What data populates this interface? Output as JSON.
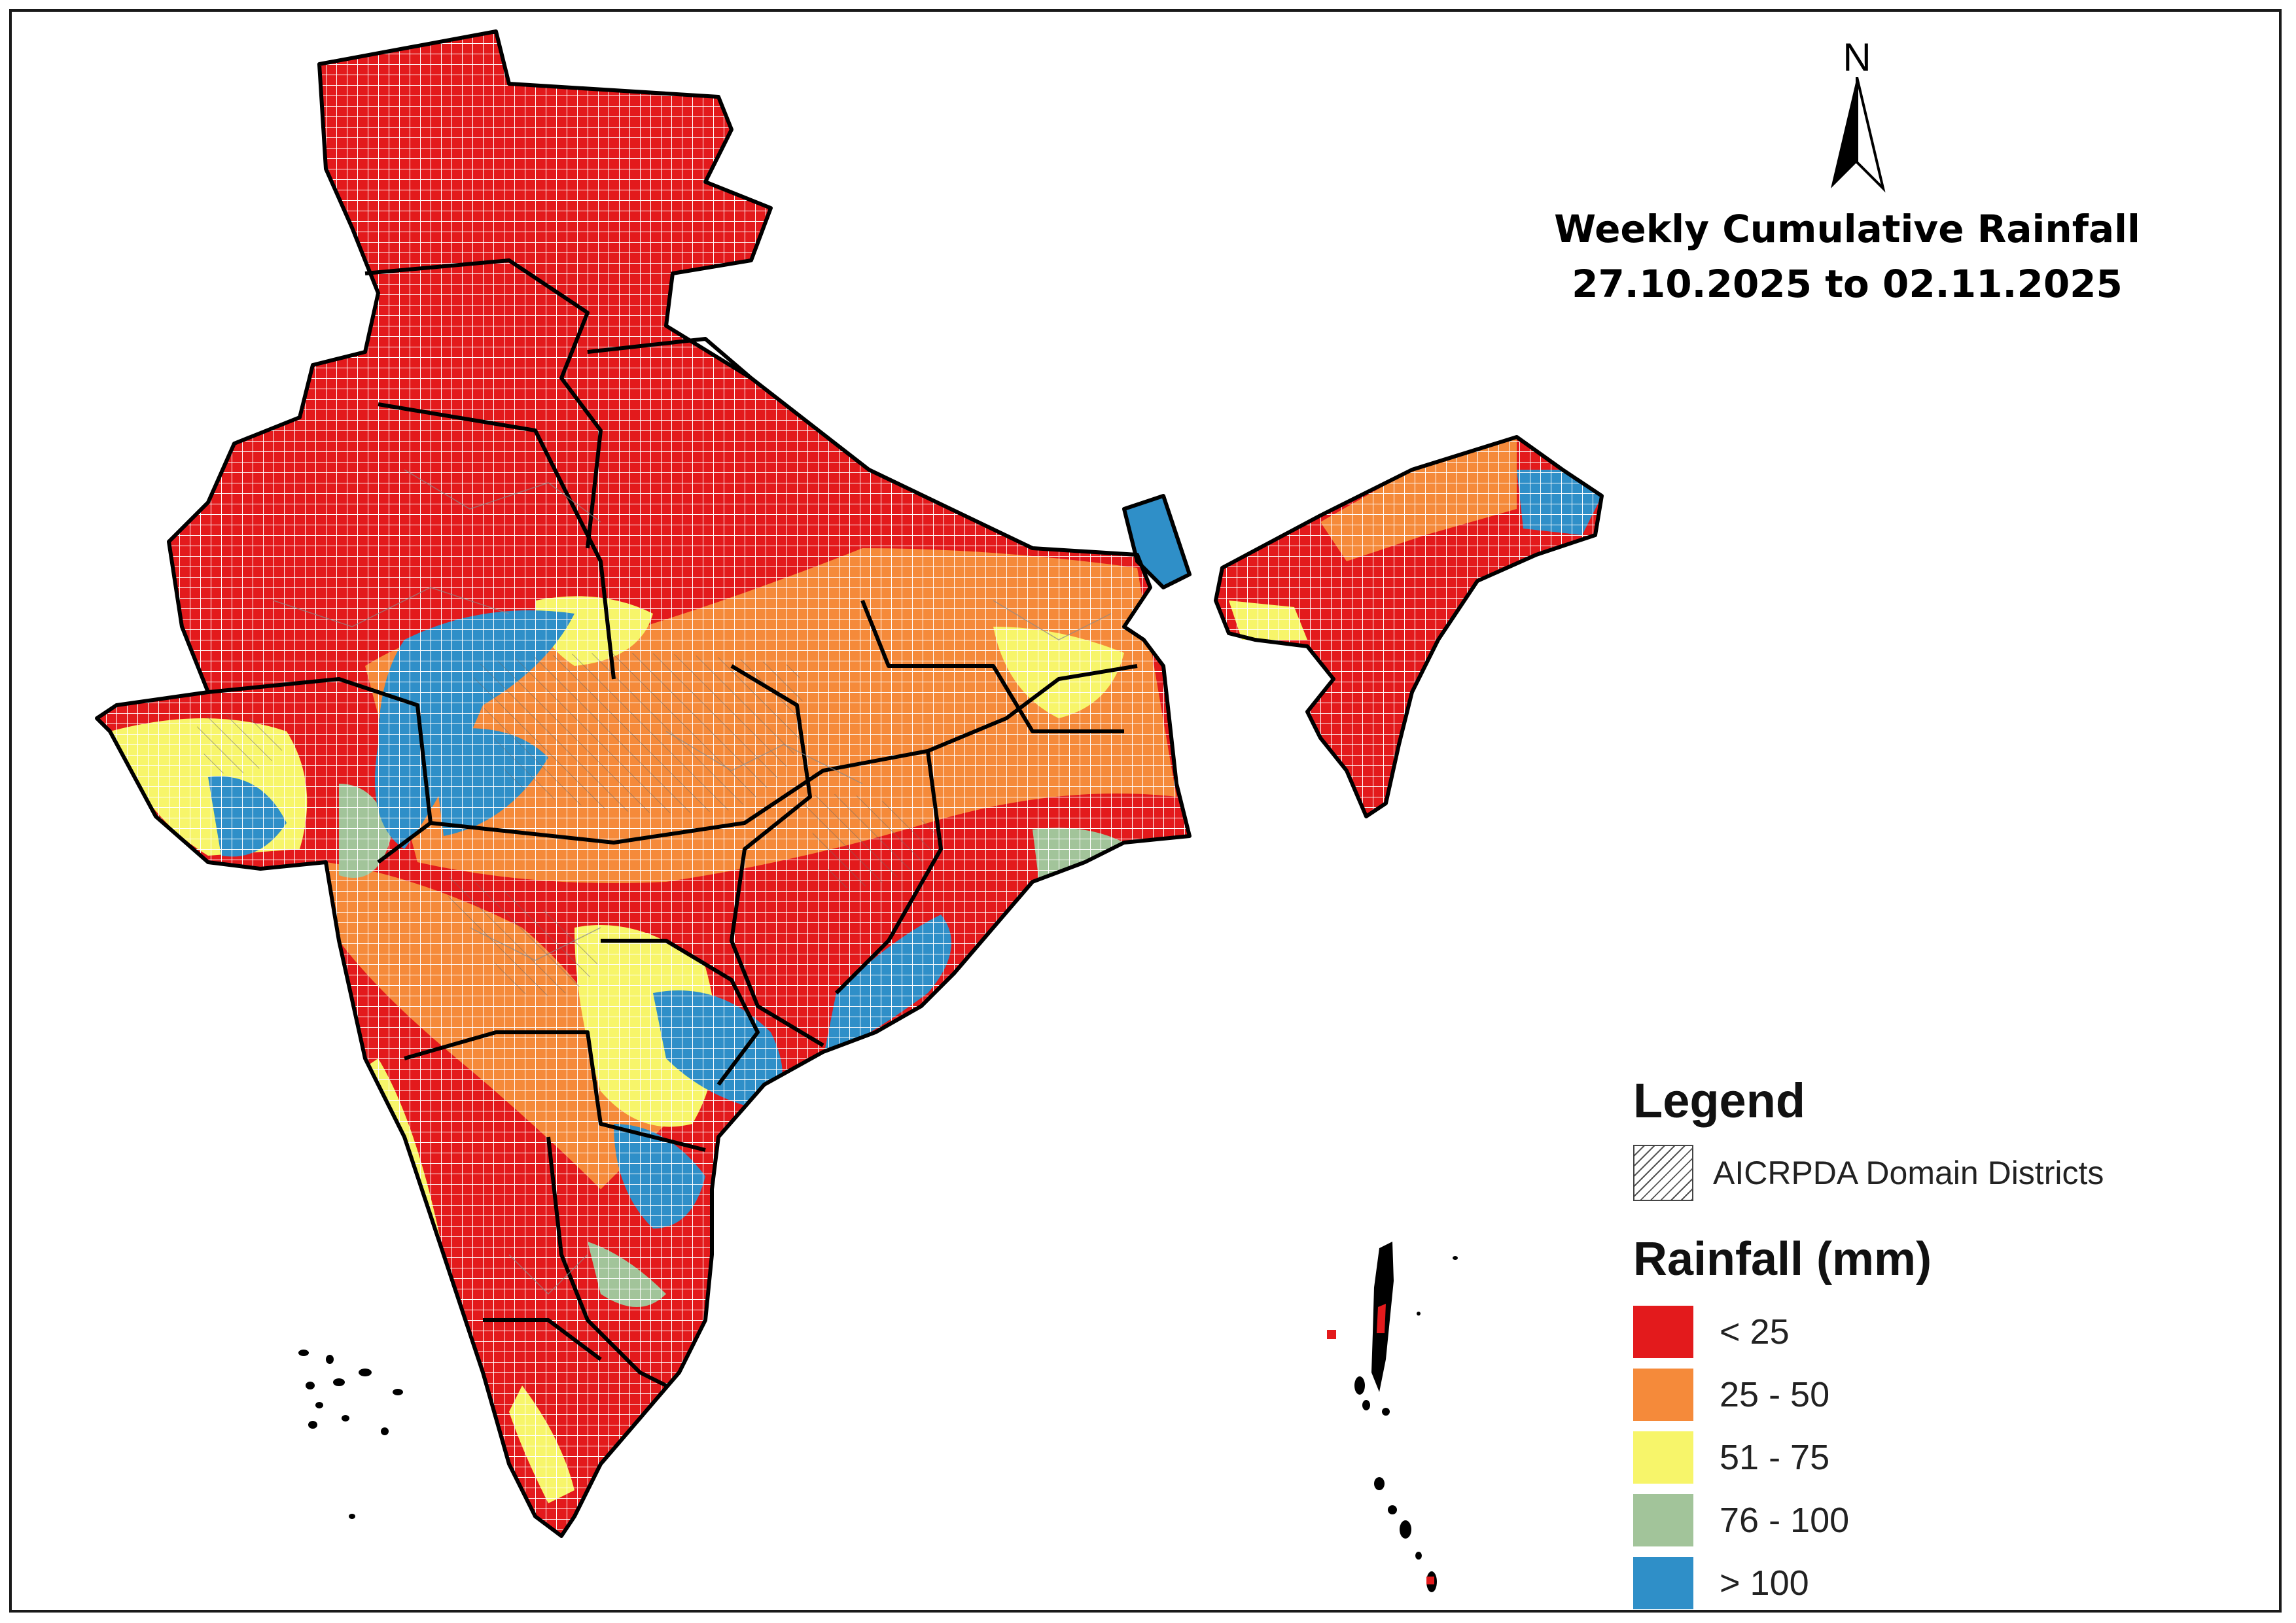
{
  "title": {
    "line1": "Weekly Cumulative Rainfall",
    "line2": "27.10.2025 to 02.11.2025"
  },
  "north_arrow": {
    "label": "N",
    "icon": "north-arrow-icon"
  },
  "legend": {
    "heading": "Legend",
    "hatch_label": "AICRPDA Domain Districts",
    "rainfall_heading": "Rainfall (mm)",
    "classes": [
      {
        "label": "< 25",
        "color": "#e31a1c"
      },
      {
        "label": "25 - 50",
        "color": "#f58a3a"
      },
      {
        "label": "51 - 75",
        "color": "#f7f56a"
      },
      {
        "label": "76 - 100",
        "color": "#a2c49a"
      },
      {
        "label": "> 100",
        "color": "#2f8fc8"
      }
    ]
  },
  "colors": {
    "frame": "#1a1a1a",
    "state_border": "#000000",
    "grid_line": "#ffffff"
  }
}
